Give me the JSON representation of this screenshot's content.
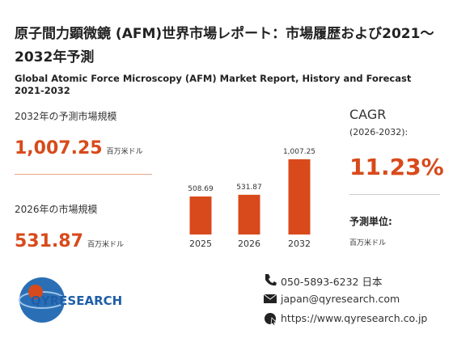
{
  "header": {
    "title": "原子間力顕微鏡 (AFM)世界市場レポート：市場履歴および2021～2032年予測",
    "subtitle": "Global Atomic Force Microscopy (AFM) Market Report, History and Forecast 2021-2032"
  },
  "stats": {
    "forecast_label": "2032年の予測市場規模",
    "forecast_value": "1,007.25",
    "forecast_unit": "百万米ドル",
    "current_label": "2026年の市場規模",
    "current_value": "531.87",
    "current_unit": "百万米ドル",
    "cagr_label": "CAGR",
    "cagr_period": "(2026-2032):",
    "cagr_value": "11.23%",
    "unit_label": "予測単位:",
    "unit_value": "百万米ドル"
  },
  "chart_data": {
    "type": "bar",
    "categories": [
      "2025",
      "2026",
      "2032"
    ],
    "values": [
      508.69,
      531.87,
      1007.25
    ],
    "value_labels": [
      "508.69",
      "531.87",
      "1,007.25"
    ],
    "color": "#d84a1b",
    "ylim": [
      0,
      1100
    ]
  },
  "logo": {
    "text": "QYRESEARCH"
  },
  "contact": {
    "phone": "050-5893-6232 日本",
    "email": "japan@qyresearch.com",
    "website": "https://www.qyresearch.co.jp"
  }
}
